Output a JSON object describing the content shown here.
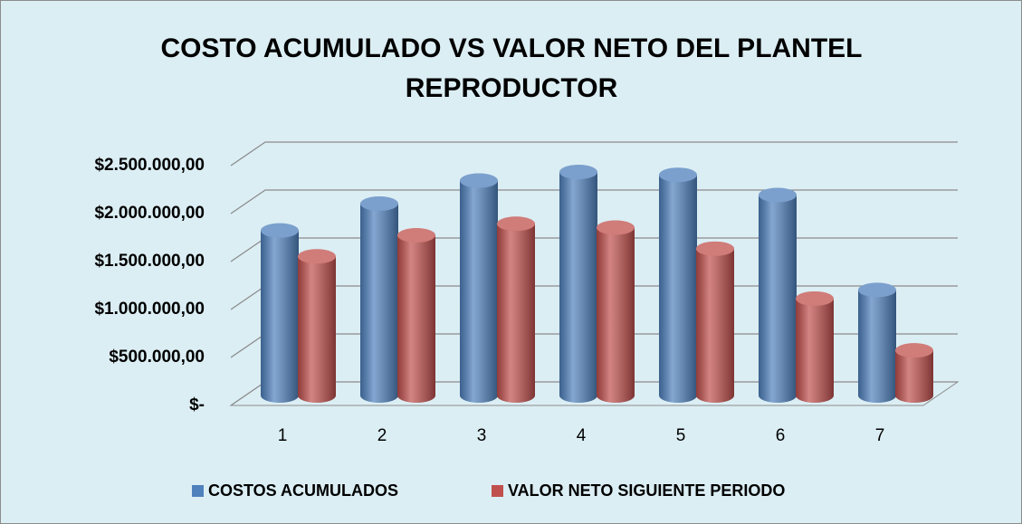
{
  "chart_data": {
    "type": "bar3d",
    "title_lines": [
      "COSTO ACUMULADO VS VALOR NETO DEL PLANTEL",
      "REPRODUCTOR"
    ],
    "categories": [
      "1",
      "2",
      "3",
      "4",
      "5",
      "6",
      "7"
    ],
    "series": [
      {
        "name": "COSTOS ACUMULADOS",
        "color": "#4f81bd",
        "values": [
          1720000,
          2000000,
          2240000,
          2330000,
          2300000,
          2090000,
          1100000
        ]
      },
      {
        "name": "VALOR NETO SIGUIENTE PERIODO",
        "color": "#c0504d",
        "values": [
          1450000,
          1670000,
          1790000,
          1750000,
          1530000,
          1010000,
          470000
        ]
      }
    ],
    "ylim": [
      0,
      2500000
    ],
    "yticks": [
      {
        "value": 0,
        "label": "$-"
      },
      {
        "value": 500000,
        "label": "$500.000,00"
      },
      {
        "value": 1000000,
        "label": "$1.000.000,00"
      },
      {
        "value": 1500000,
        "label": "$1.500.000,00"
      },
      {
        "value": 2000000,
        "label": "$2.000.000,00"
      },
      {
        "value": 2500000,
        "label": "$2.500.000,00"
      }
    ],
    "grid": true,
    "legend": "bottom"
  }
}
